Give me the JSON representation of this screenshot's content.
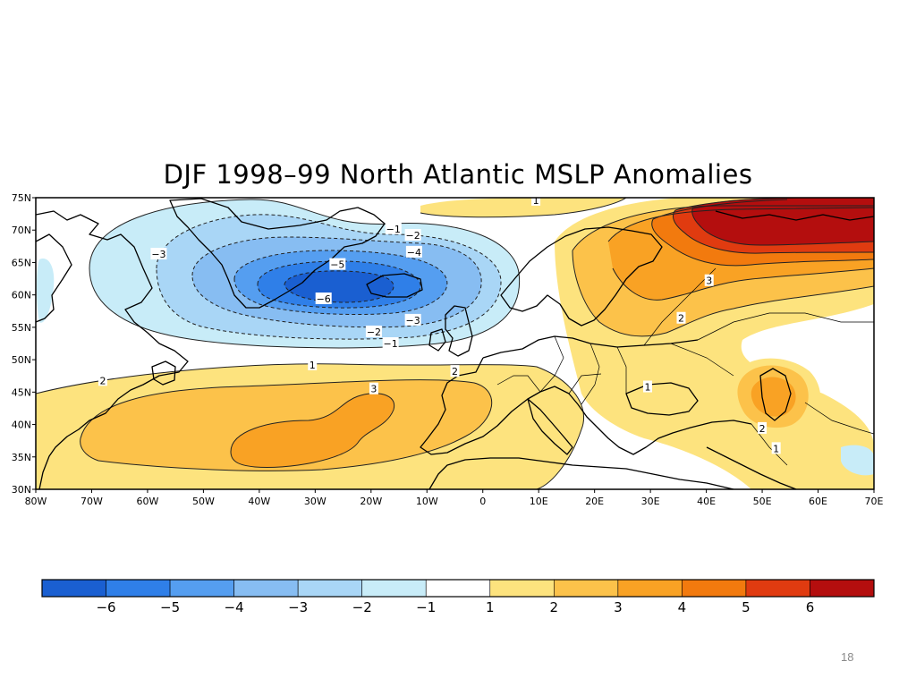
{
  "title": "DJF 1998–99 North Atlantic MSLP Anomalies",
  "slide_number": "18",
  "colors": {
    "n6": "#1a5fd1",
    "n5": "#2f7fe8",
    "n4": "#559ef0",
    "n3": "#87bdf2",
    "n2": "#a9d6f6",
    "n1": "#c8ecf8",
    "zero": "#ffffff",
    "p1": "#fde37e",
    "p2": "#fcc24a",
    "p3": "#f9a224",
    "p4": "#f27a0e",
    "p5": "#e03b10",
    "p6": "#b40e0e"
  },
  "chart_data": {
    "type": "heatmap",
    "lon_range": [
      -80,
      70
    ],
    "lat_range": [
      30,
      75
    ],
    "lat_ticks": [
      {
        "value": 75,
        "label": "75N"
      },
      {
        "value": 70,
        "label": "70N"
      },
      {
        "value": 65,
        "label": "65N"
      },
      {
        "value": 60,
        "label": "60N"
      },
      {
        "value": 55,
        "label": "55N"
      },
      {
        "value": 50,
        "label": "50N"
      },
      {
        "value": 45,
        "label": "45N"
      },
      {
        "value": 40,
        "label": "40N"
      },
      {
        "value": 35,
        "label": "35N"
      },
      {
        "value": 30,
        "label": "30N"
      }
    ],
    "lon_ticks": [
      {
        "value": -80,
        "label": "80W"
      },
      {
        "value": -70,
        "label": "70W"
      },
      {
        "value": -60,
        "label": "60W"
      },
      {
        "value": -50,
        "label": "50W"
      },
      {
        "value": -40,
        "label": "40W"
      },
      {
        "value": -30,
        "label": "30W"
      },
      {
        "value": -20,
        "label": "20W"
      },
      {
        "value": -10,
        "label": "10W"
      },
      {
        "value": 0,
        "label": "0"
      },
      {
        "value": 10,
        "label": "10E"
      },
      {
        "value": 20,
        "label": "20E"
      },
      {
        "value": 30,
        "label": "30E"
      },
      {
        "value": 40,
        "label": "40E"
      },
      {
        "value": 50,
        "label": "50E"
      },
      {
        "value": 60,
        "label": "60E"
      },
      {
        "value": 70,
        "label": "70E"
      }
    ],
    "contour_labels": [
      {
        "text": "−1",
        "lon": -16,
        "lat": 70.2
      },
      {
        "text": "−2",
        "lon": -12.5,
        "lat": 69.2
      },
      {
        "text": "−3",
        "lon": -58,
        "lat": 66.3
      },
      {
        "text": "−4",
        "lon": -12.3,
        "lat": 66.6
      },
      {
        "text": "−5",
        "lon": -26,
        "lat": 64.7
      },
      {
        "text": "−6",
        "lon": -28.5,
        "lat": 59.4
      },
      {
        "text": "−3",
        "lon": -12.5,
        "lat": 56.1
      },
      {
        "text": "−2",
        "lon": -19.5,
        "lat": 54.3
      },
      {
        "text": "−1",
        "lon": -16.5,
        "lat": 52.5
      },
      {
        "text": "1",
        "lon": -30.5,
        "lat": 49.2
      },
      {
        "text": "2",
        "lon": -5,
        "lat": 48.2
      },
      {
        "text": "2",
        "lon": -68,
        "lat": 46.8
      },
      {
        "text": "3",
        "lon": -19.5,
        "lat": 45.5
      },
      {
        "text": "1",
        "lon": 9.5,
        "lat": 74.6
      },
      {
        "text": "3",
        "lon": 40.5,
        "lat": 62.2
      },
      {
        "text": "2",
        "lon": 35.5,
        "lat": 56.4
      },
      {
        "text": "1",
        "lon": 29.5,
        "lat": 45.8
      },
      {
        "text": "2",
        "lon": 50,
        "lat": 39.4
      },
      {
        "text": "1",
        "lon": 52.5,
        "lat": 36.3
      }
    ],
    "colorbar": [
      {
        "color": "n6"
      },
      {
        "color": "n5",
        "label": "−6"
      },
      {
        "color": "n4",
        "label": "−5"
      },
      {
        "color": "n3",
        "label": "−4"
      },
      {
        "color": "n2",
        "label": "−3"
      },
      {
        "color": "n1",
        "label": "−2"
      },
      {
        "color": "zero",
        "label": "−1"
      },
      {
        "color": "p1",
        "label": "1"
      },
      {
        "color": "p2",
        "label": "2"
      },
      {
        "color": "p3",
        "label": "3"
      },
      {
        "color": "p4",
        "label": "4"
      },
      {
        "color": "p5",
        "label": "5"
      },
      {
        "color": "p6",
        "label": "6"
      }
    ]
  }
}
